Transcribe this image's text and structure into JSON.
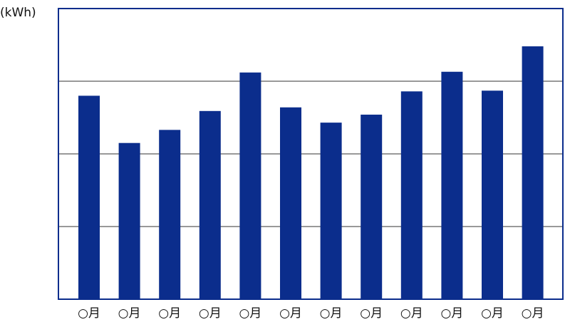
{
  "chart_data": {
    "type": "bar",
    "y_label": "(kWh)",
    "categories": [
      "○月",
      "○月",
      "○月",
      "○月",
      "○月",
      "○月",
      "○月",
      "○月",
      "○月",
      "○月",
      "○月",
      "○月"
    ],
    "values": [
      2.8,
      2.15,
      2.33,
      2.59,
      3.12,
      2.64,
      2.43,
      2.54,
      2.86,
      3.13,
      2.87,
      3.48
    ],
    "color": "#0b2d8c",
    "ylim": [
      0,
      4
    ],
    "yticks": [
      1,
      2,
      3
    ],
    "grid": true
  }
}
